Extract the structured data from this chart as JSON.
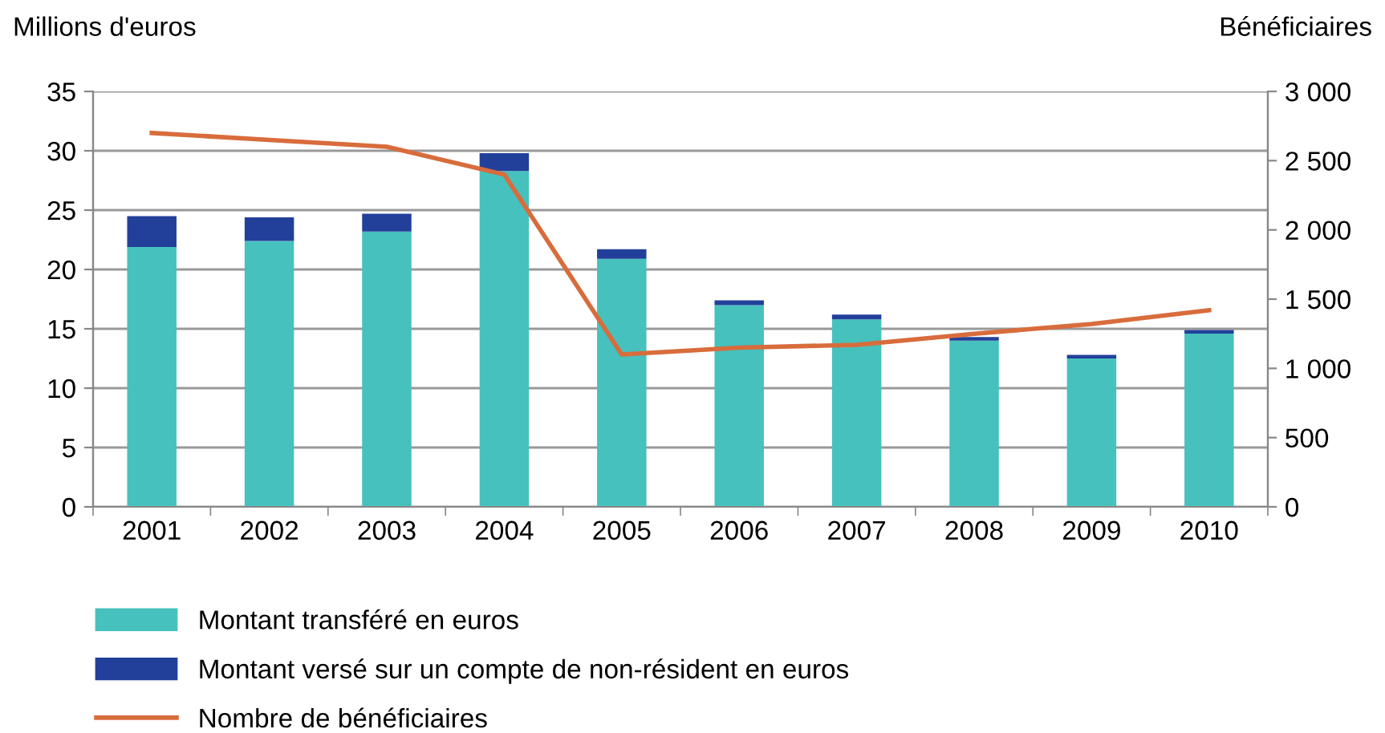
{
  "chart_data": {
    "type": "bar",
    "stacked": true,
    "ylabel": "Millions d'euros",
    "y2label": "Bénéficiaires",
    "categories": [
      "2001",
      "2002",
      "2003",
      "2004",
      "2005",
      "2006",
      "2007",
      "2008",
      "2009",
      "2010"
    ],
    "series": [
      {
        "name": "Montant transféré en euros",
        "color": "#46c1bd",
        "values": [
          21.9,
          22.4,
          23.2,
          28.3,
          20.9,
          17.0,
          15.8,
          14.0,
          12.5,
          14.6
        ]
      },
      {
        "name": "Montant versé sur un compte de non-résident en euros",
        "color": "#22409a",
        "values": [
          2.6,
          2.0,
          1.5,
          1.5,
          0.8,
          0.4,
          0.4,
          0.3,
          0.3,
          0.3
        ]
      },
      {
        "name": "Nombre de bénéficiaires",
        "type": "line",
        "axis": "y2",
        "color": "#d86c3c",
        "values": [
          2700,
          2650,
          2600,
          2400,
          1100,
          1150,
          1170,
          1250,
          1320,
          1420
        ]
      }
    ],
    "ylim": [
      0,
      35
    ],
    "yticks": [
      0,
      5,
      10,
      15,
      20,
      25,
      30,
      35
    ],
    "y2lim": [
      0,
      3000
    ],
    "y2ticks": [
      0,
      500,
      {
        "value": 1000,
        "label": "1 000"
      },
      {
        "value": 1500,
        "label": "1 500"
      },
      {
        "value": 2000,
        "label": "2 000"
      },
      {
        "value": 2500,
        "label": "2 500"
      },
      {
        "value": 3000,
        "label": "3 000"
      }
    ],
    "grid": "y",
    "legend": "bottom"
  }
}
